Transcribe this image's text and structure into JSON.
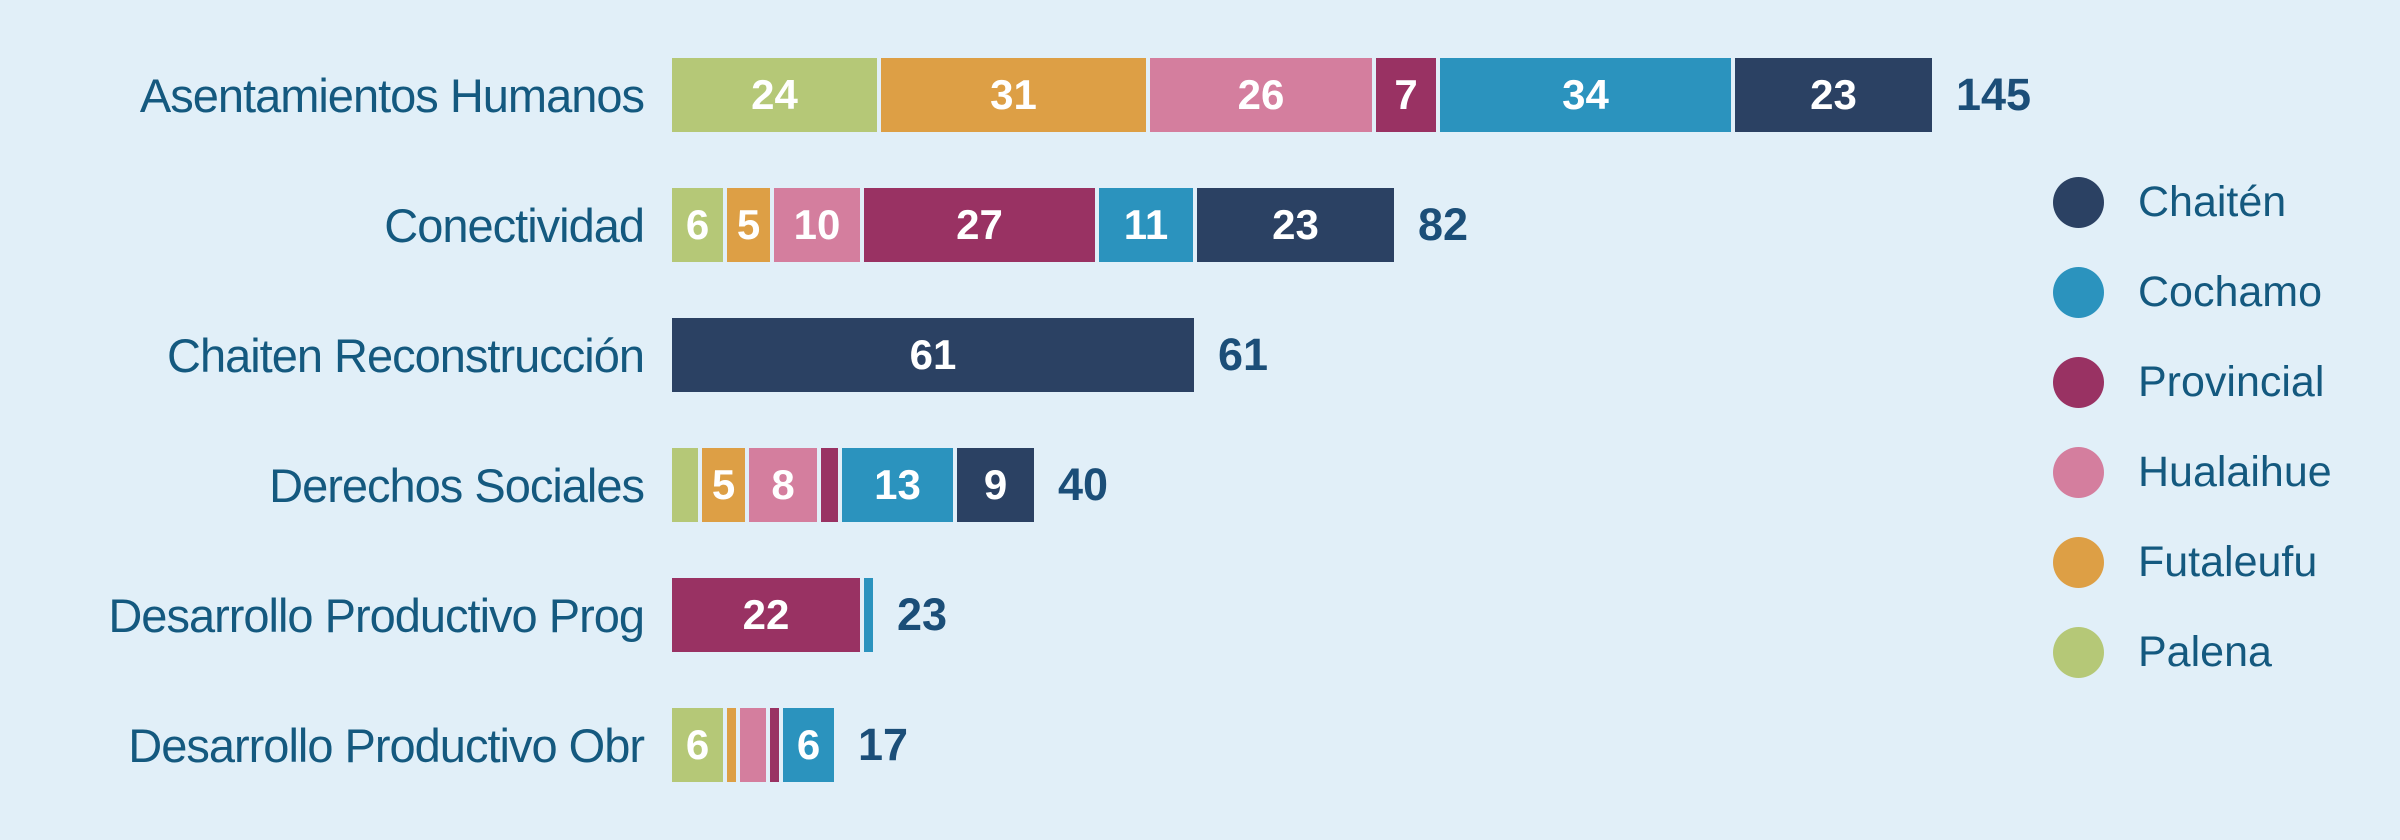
{
  "colors": {
    "background": "#e1eff8",
    "category_label": "#14597f",
    "total_label": "#1b4e78",
    "segment_value_label": "#ffffff"
  },
  "chart_data": {
    "type": "bar",
    "orientation": "horizontal",
    "stacked": true,
    "grid": false,
    "legend_position": "right",
    "categories": [
      "Asentamientos Humanos",
      "Conectividad",
      "Chaiten Reconstrucción",
      "Derechos Sociales",
      "Desarrollo Productivo Prog",
      "Desarrollo Productivo Obr"
    ],
    "series": [
      {
        "name": "Palena",
        "color": "#b5c877",
        "values": [
          24,
          6,
          0,
          3,
          0,
          6
        ]
      },
      {
        "name": "Futaleufu",
        "color": "#dd9f45",
        "values": [
          31,
          5,
          0,
          5,
          0,
          1
        ]
      },
      {
        "name": "Hualaihue",
        "color": "#d47e9e",
        "values": [
          26,
          10,
          0,
          8,
          0,
          3
        ]
      },
      {
        "name": "Provincial",
        "color": "#993263",
        "values": [
          7,
          27,
          0,
          2,
          22,
          1
        ]
      },
      {
        "name": "Cochamo",
        "color": "#2b93be",
        "values": [
          34,
          11,
          0,
          13,
          1,
          6
        ]
      },
      {
        "name": "Chaitén",
        "color": "#2b4163",
        "values": [
          23,
          23,
          61,
          9,
          0,
          0
        ]
      }
    ],
    "totals": [
      145,
      82,
      61,
      40,
      23,
      17
    ],
    "value_label_min": 5,
    "x_range": [
      0,
      145
    ],
    "legend": [
      "Chaitén",
      "Cochamo",
      "Provincial",
      "Hualaihue",
      "Futaleufu",
      "Palena"
    ]
  }
}
